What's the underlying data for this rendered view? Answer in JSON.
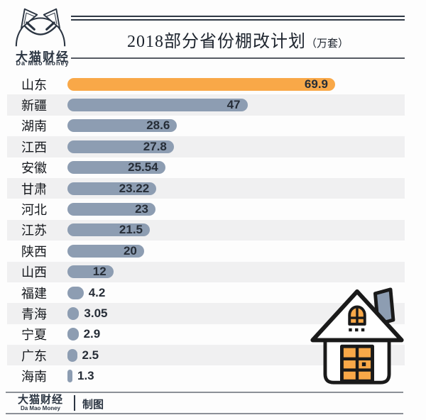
{
  "logo": {
    "name_cn": "大猫财经",
    "name_en": "Da Mao Money"
  },
  "header": {
    "title": "2018部分省份棚改计划",
    "unit": "（万套）"
  },
  "chart_data": {
    "type": "bar",
    "orientation": "horizontal",
    "title": "2018部分省份棚改计划（万套）",
    "unit": "万套",
    "categories": [
      "山东",
      "新疆",
      "湖南",
      "江西",
      "安徽",
      "甘肃",
      "河北",
      "江苏",
      "陕西",
      "山西",
      "福建",
      "青海",
      "宁夏",
      "广东",
      "海南"
    ],
    "values": [
      69.9,
      47,
      28.6,
      27.8,
      25.54,
      23.22,
      23,
      21.5,
      20,
      12,
      4.2,
      3.05,
      2.9,
      2.5,
      1.3
    ],
    "value_labels": [
      "69.9",
      "47",
      "28.6",
      "27.8",
      "25.54",
      "23.22",
      "23",
      "21.5",
      "20",
      "12",
      "4.2",
      "3.05",
      "2.9",
      "2.5",
      "1.3"
    ],
    "xlim": [
      0,
      70
    ],
    "highlight_index": 0,
    "grid": false,
    "legend": "none",
    "value_label_position": "inside-end, outside for small bars",
    "colors": {
      "highlight_bar": "#f9a848",
      "default_bar": "#8d9db2",
      "row_stripe": "#f0f0f1",
      "value_text": "#262d37",
      "label_text": "#14171c"
    }
  },
  "footer": {
    "brand_cn": "大猫财经",
    "brand_en": "Da Mao Money",
    "credit": "制图"
  },
  "icons": {
    "cat_logo": "cat-face line drawing",
    "house": "house with orange door and window, gray chimney"
  }
}
